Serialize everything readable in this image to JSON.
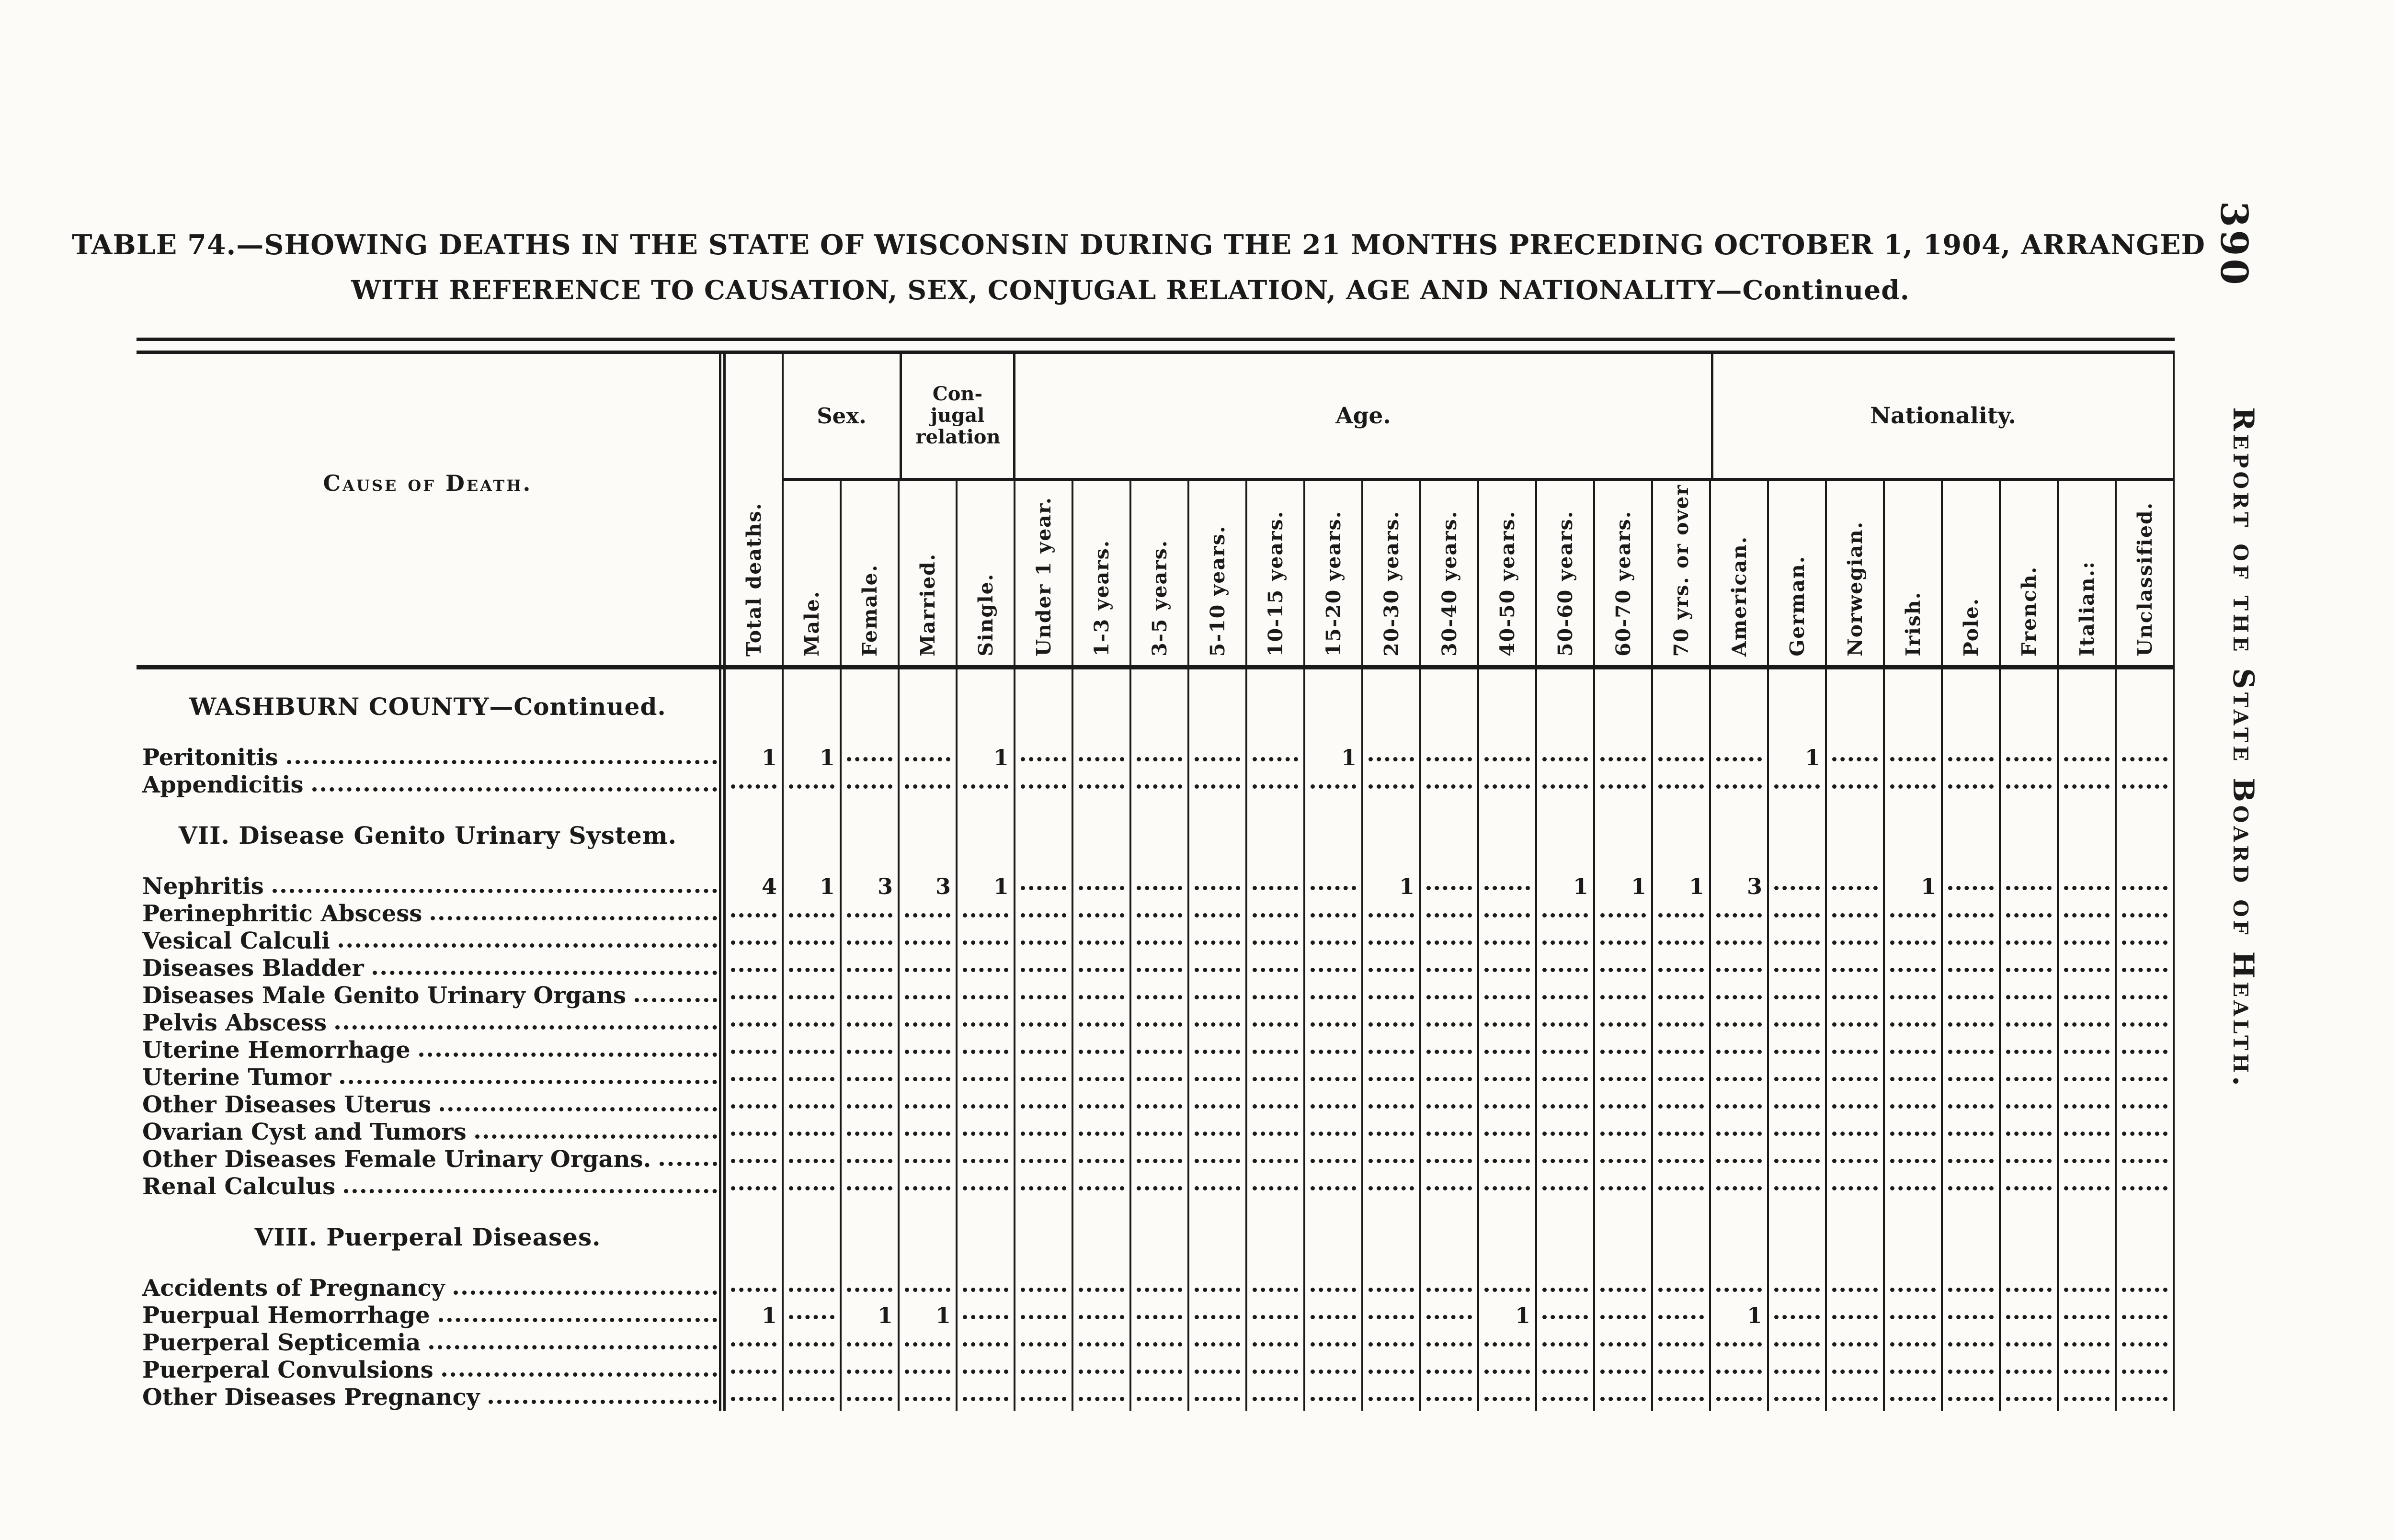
{
  "page": {
    "page_number": "390",
    "margin_title": "Report of the State Board of Health.",
    "title_line1": "TABLE 74.—SHOWING DEATHS IN THE STATE OF WISCONSIN DURING THE 21 MONTHS PRECEDING OCTOBER 1, 1904, ARRANGED",
    "title_line2": "WITH REFERENCE TO CAUSATION, SEX, CONJUGAL RELATION, AGE AND NATIONALITY—Continued."
  },
  "colors": {
    "ink": "#1a1a1a",
    "paper": "#fcfbf7"
  },
  "table": {
    "stub_header": "Cause of Death.",
    "groups": [
      {
        "label": "Sex.",
        "span": 2
      },
      {
        "label": "Con-jugal relation",
        "span": 2
      },
      {
        "label": "Age.",
        "span": 12
      },
      {
        "label": "Nationality.",
        "span": 8
      }
    ],
    "columns": [
      "Total deaths.",
      "Male.",
      "Female.",
      "Married.",
      "Single.",
      "Under 1 year.",
      "1-3 years.",
      "3-5 years.",
      "5-10 years.",
      "10-15 years.",
      "15-20 years.",
      "20-30 years.",
      "30-40 years.",
      "40-50 years.",
      "50-60 years.",
      "60-70 years.",
      "70 yrs. or over",
      "American.",
      "German.",
      "Norwegian.",
      "Irish.",
      "Pole.",
      "French.",
      "Italian.:",
      "Unclassified."
    ],
    "rows": [
      {
        "type": "section",
        "label": "WASHBURN COUNTY—Continued."
      },
      {
        "type": "data",
        "label": "Peritonitis",
        "values": [
          "1",
          "1",
          "",
          "",
          "1",
          "",
          "",
          "",
          "",
          "",
          "1",
          "",
          "",
          "",
          "",
          "",
          "",
          "",
          "1",
          "",
          "",
          "",
          "",
          "",
          ""
        ]
      },
      {
        "type": "data",
        "label": "Appendicitis",
        "values": []
      },
      {
        "type": "section",
        "label": "VII. Disease Genito Urinary System."
      },
      {
        "type": "data",
        "label": "Nephritis",
        "values": [
          "4",
          "1",
          "3",
          "3",
          "1",
          "",
          "",
          "",
          "",
          "",
          "",
          "1",
          "",
          "",
          "1",
          "1",
          "1",
          "3",
          "",
          "",
          "1",
          "",
          "",
          "",
          ""
        ]
      },
      {
        "type": "data",
        "label": "Perinephritic Abscess",
        "values": []
      },
      {
        "type": "data",
        "label": "Vesical Calculi",
        "values": []
      },
      {
        "type": "data",
        "label": "Diseases Bladder",
        "values": []
      },
      {
        "type": "data",
        "label": "Diseases Male Genito Urinary Organs",
        "values": []
      },
      {
        "type": "data",
        "label": "Pelvis Abscess",
        "values": []
      },
      {
        "type": "data",
        "label": "Uterine Hemorrhage",
        "values": []
      },
      {
        "type": "data",
        "label": "Uterine Tumor",
        "values": []
      },
      {
        "type": "data",
        "label": "Other Diseases Uterus",
        "values": []
      },
      {
        "type": "data",
        "label": "Ovarian Cyst and Tumors",
        "values": []
      },
      {
        "type": "data",
        "label": "Other Diseases Female Urinary Organs.",
        "values": []
      },
      {
        "type": "data",
        "label": "Renal Calculus",
        "values": []
      },
      {
        "type": "section",
        "label": "VIII. Puerperal Diseases."
      },
      {
        "type": "data",
        "label": "Accidents of Pregnancy",
        "values": []
      },
      {
        "type": "data",
        "label": "Puerpual Hemorrhage",
        "values": [
          "1",
          "",
          "1",
          "1",
          "",
          "",
          "",
          "",
          "",
          "",
          "",
          "",
          "",
          "1",
          "",
          "",
          "",
          "1",
          "",
          "",
          "",
          "",
          "",
          "",
          ""
        ]
      },
      {
        "type": "data",
        "label": "Puerperal Septicemia",
        "values": []
      },
      {
        "type": "data",
        "label": "Puerperal Convulsions",
        "values": []
      },
      {
        "type": "data",
        "label": "Other Diseases Pregnancy",
        "values": []
      }
    ]
  }
}
